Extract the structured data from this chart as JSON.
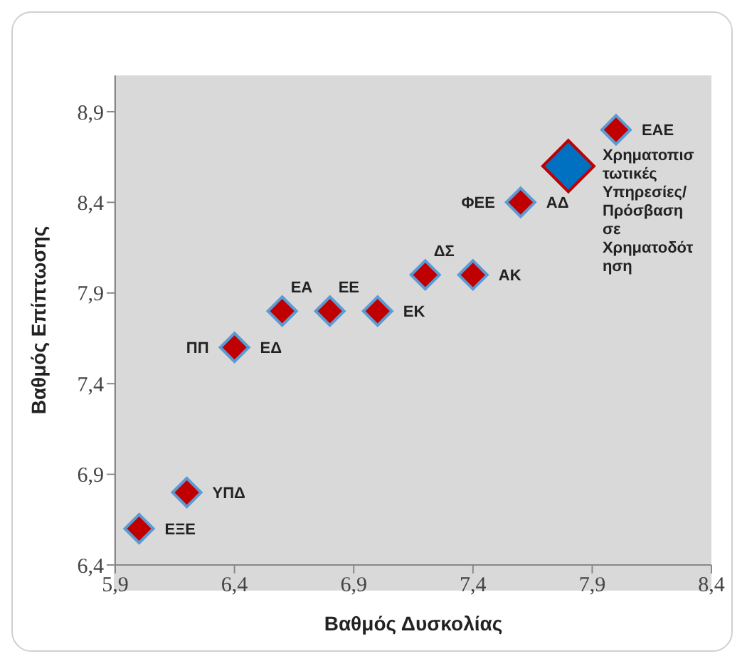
{
  "chart_data": {
    "type": "scatter",
    "xlabel": "Βαθμός Δυσκολίας",
    "ylabel": "Βαθμός Επίπτωσης",
    "xlim": [
      5.9,
      8.4
    ],
    "xticks": [
      {
        "value": 5.9,
        "label": "5,9"
      },
      {
        "value": 6.4,
        "label": "6,4"
      },
      {
        "value": 6.9,
        "label": "6,9"
      },
      {
        "value": 7.4,
        "label": "7,4"
      },
      {
        "value": 7.9,
        "label": "7,9"
      },
      {
        "value": 8.4,
        "label": "8,4"
      }
    ],
    "ylim": [
      6.4,
      9.1
    ],
    "yticks": [
      {
        "value": 6.4,
        "label": "6,4"
      },
      {
        "value": 6.9,
        "label": "6,9"
      },
      {
        "value": 7.4,
        "label": "7,4"
      },
      {
        "value": 7.9,
        "label": "7,9"
      },
      {
        "value": 8.4,
        "label": "8,4"
      },
      {
        "value": 8.9,
        "label": "8,9"
      }
    ],
    "grid": false,
    "legend": false,
    "marker": "diamond",
    "series": [
      {
        "color": "#c00000",
        "x": [
          6.0,
          6.2,
          6.4,
          6.6,
          6.8,
          7.0,
          7.2,
          7.4,
          7.6,
          8.0
        ],
        "values": [
          6.6,
          6.8,
          7.6,
          7.8,
          7.8,
          7.8,
          8.0,
          8.0,
          8.4,
          8.8
        ]
      },
      {
        "color": "#0070c0",
        "x": [
          7.8
        ],
        "values": [
          8.6
        ]
      }
    ],
    "annotations": [
      {
        "text": "ΕΞΕ",
        "x": 6.0,
        "y": 6.6
      },
      {
        "text": "ΥΠΔ",
        "x": 6.2,
        "y": 6.8
      },
      {
        "text": "ΠΠ",
        "x": 6.4,
        "y": 7.6
      },
      {
        "text": "ΕΔ",
        "x": 6.4,
        "y": 7.6
      },
      {
        "text": "ΕΑ",
        "x": 6.6,
        "y": 7.8
      },
      {
        "text": "ΕΕ",
        "x": 6.8,
        "y": 7.8
      },
      {
        "text": "ΕΚ",
        "x": 7.0,
        "y": 7.8
      },
      {
        "text": "ΔΣ",
        "x": 7.2,
        "y": 8.0
      },
      {
        "text": "ΑΚ",
        "x": 7.4,
        "y": 8.0
      },
      {
        "text": "ΦΕΕ",
        "x": 7.6,
        "y": 8.4
      },
      {
        "text": "ΑΔ",
        "x": 7.6,
        "y": 8.4
      },
      {
        "text": "ΕΑΕ",
        "x": 8.0,
        "y": 8.8
      },
      {
        "text": "Χρηματοπιστωτικές Υπηρεσίες/Πρόσβαση σε Χρηματοδότηση",
        "x": 7.8,
        "y": 8.6
      }
    ]
  }
}
